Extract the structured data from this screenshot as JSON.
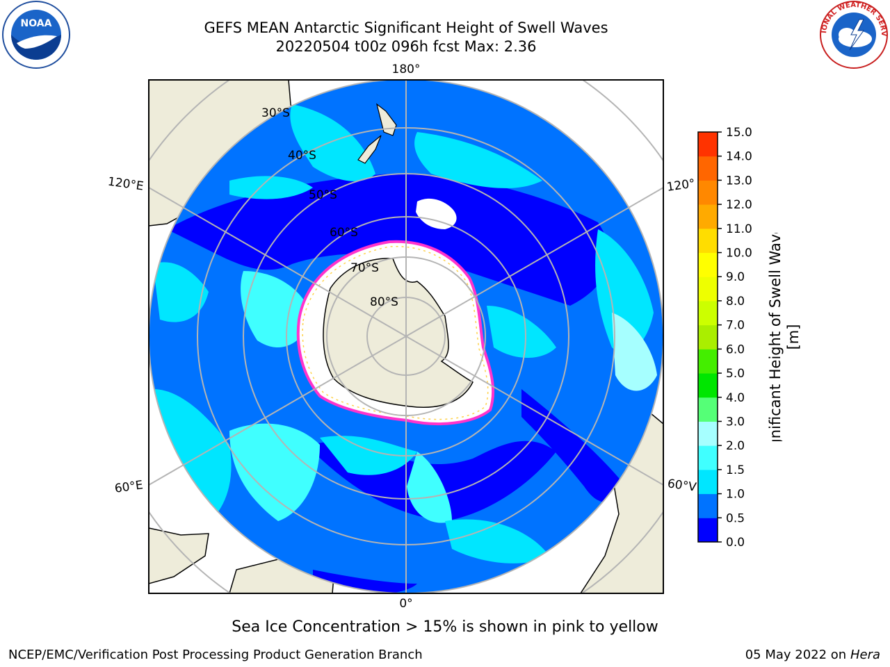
{
  "header": {
    "title_line1": "GEFS MEAN Antarctic Significant Height of Swell Waves",
    "title_line2": "20220504 t00z 096h fcst   Max: 2.36"
  },
  "logos": {
    "left": "noaa-logo",
    "left_text": "NOAA",
    "right": "national-weather-service-logo",
    "right_text": "NATIONAL WEATHER SERVICE"
  },
  "map": {
    "projection": "south-polar-stereographic",
    "meridian_labels": [
      {
        "key": "top",
        "text": "180°"
      },
      {
        "key": "bottom",
        "text": "0°"
      },
      {
        "key": "left_upper",
        "text": "120°E"
      },
      {
        "key": "left_lower",
        "text": "60°E"
      },
      {
        "key": "right_upper",
        "text": "120°"
      },
      {
        "key": "right_lower",
        "text": "60°V"
      }
    ],
    "latitude_labels": [
      "30°S",
      "40°S",
      "50°S",
      "60°S",
      "70°S",
      "80°S"
    ],
    "colors": {
      "land": "#eeecda",
      "ice_edge": "#ff33cc",
      "ice_inner": "#ffd24a"
    }
  },
  "colorbar": {
    "label": "Significant Height of Swell Waves [m]",
    "ticks": [
      "0.0",
      "0.5",
      "1.0",
      "1.5",
      "2.0",
      "3.0",
      "4.0",
      "5.0",
      "6.0",
      "7.0",
      "8.0",
      "9.0",
      "10.0",
      "11.0",
      "12.0",
      "13.0",
      "14.0",
      "15.0"
    ],
    "colors": [
      "#0000ff",
      "#0073ff",
      "#00e6ff",
      "#40ffff",
      "#a6ffff",
      "#55ff77",
      "#00e600",
      "#44ee00",
      "#aaee00",
      "#ccff00",
      "#eeff00",
      "#ffff00",
      "#ffdd00",
      "#ffaa00",
      "#ff8800",
      "#ff6600",
      "#ff3300"
    ]
  },
  "footer": {
    "note": "Sea Ice Concentration > 15% is shown in pink to yellow",
    "credit_left": "NCEP/EMC/Verification Post Processing Product Generation Branch",
    "date": "05 May 2022 on",
    "machine": "Hera"
  }
}
